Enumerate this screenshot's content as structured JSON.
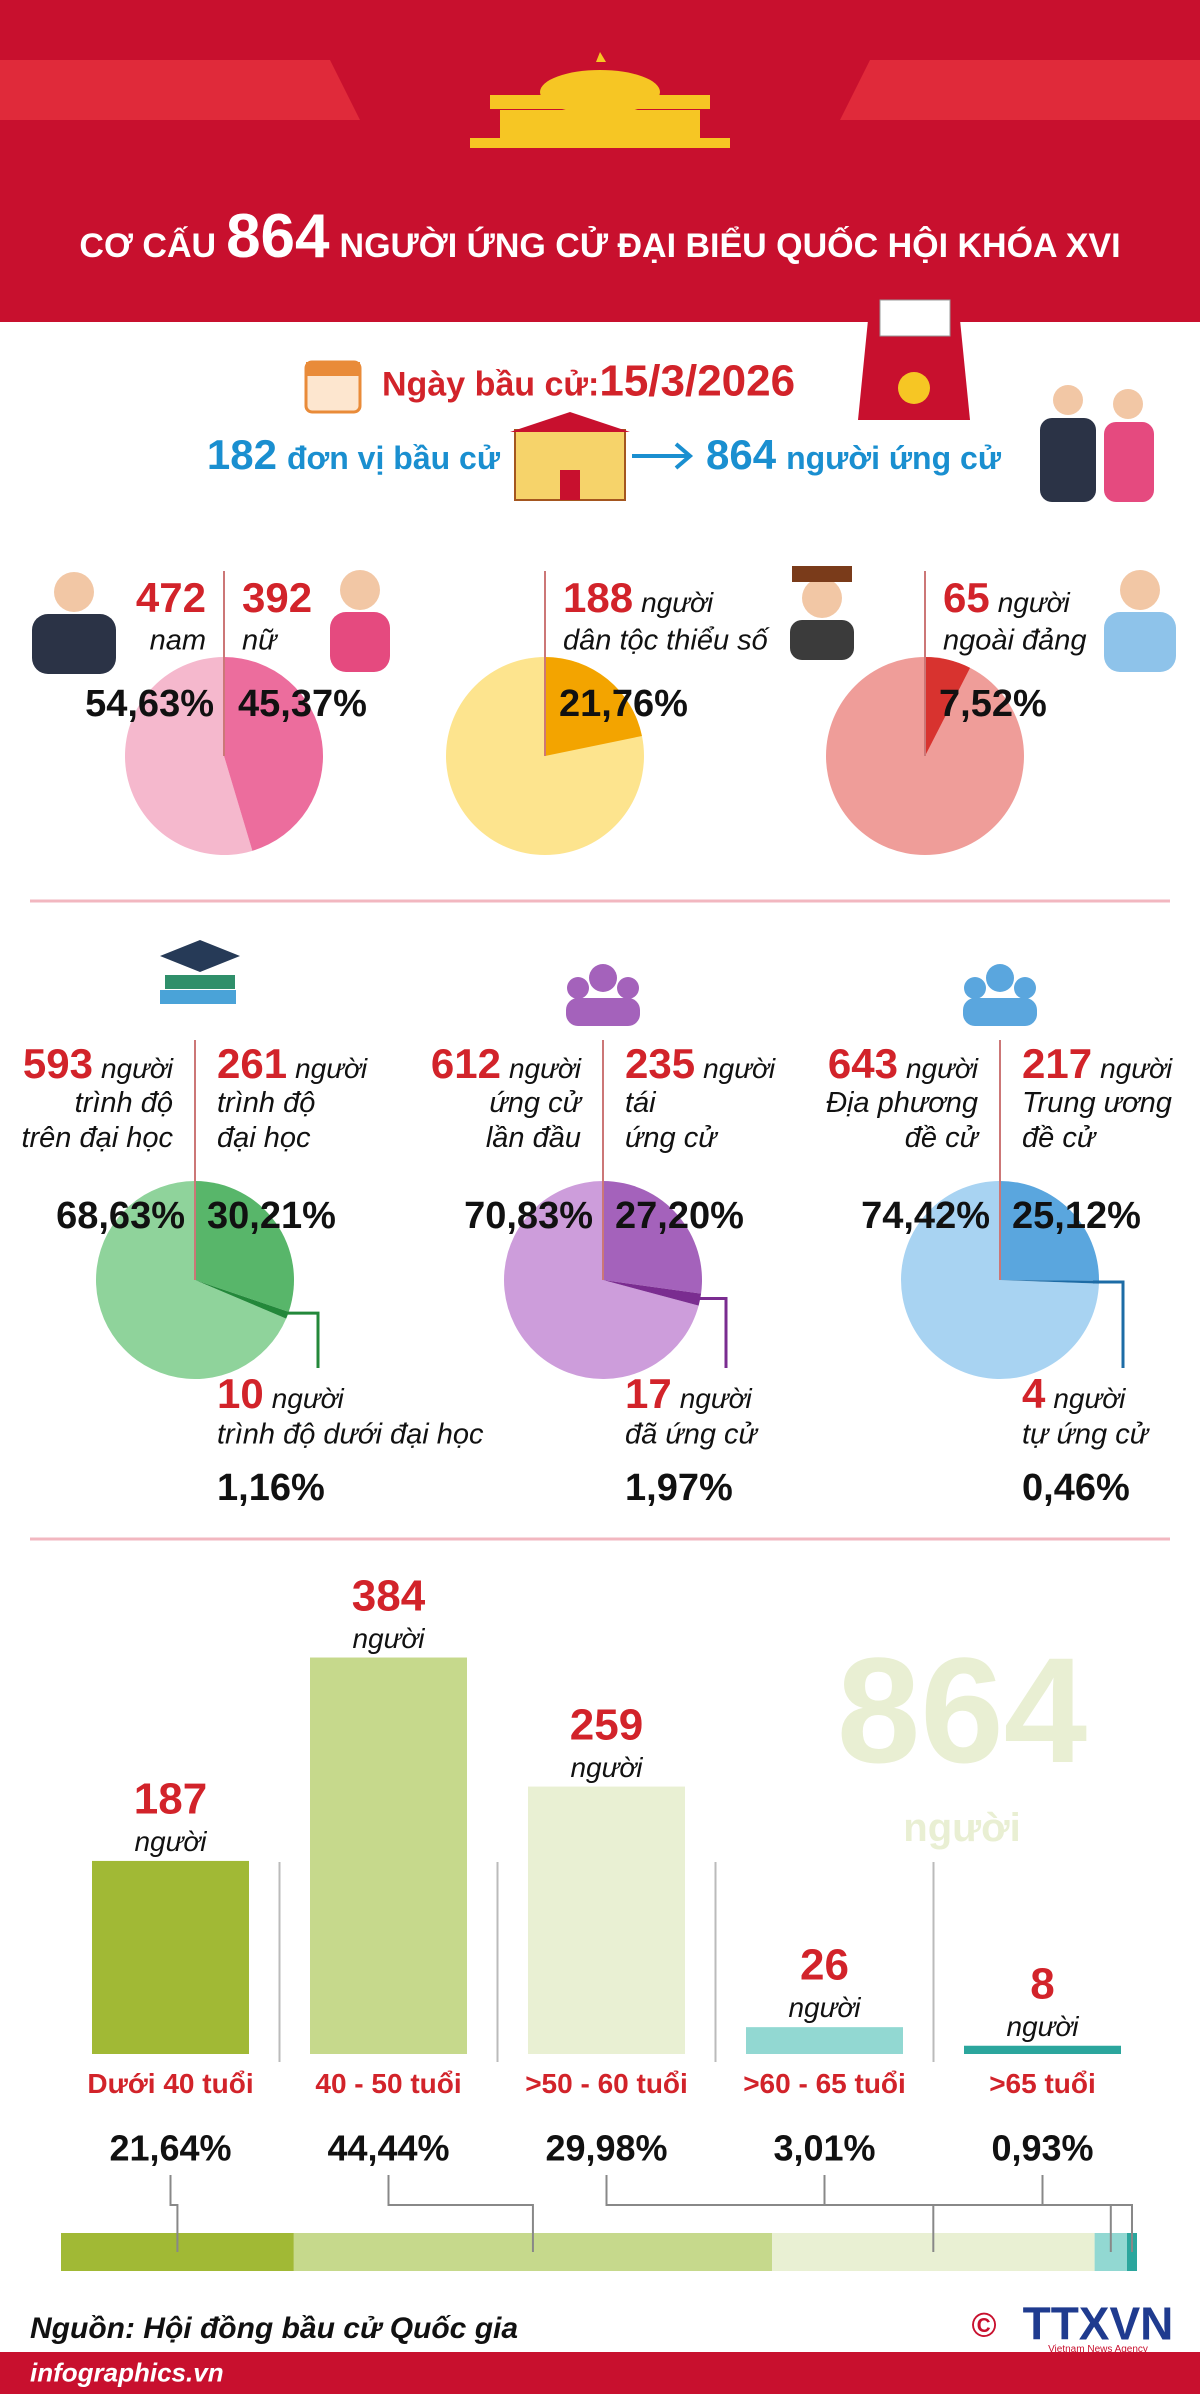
{
  "header": {
    "title_pre": "CƠ CẤU",
    "title_number": "864",
    "title_post": "NGƯỜI ỨNG CỬ ĐẠI BIỂU QUỐC HỘI KHÓA XVI"
  },
  "election": {
    "date_label": "Ngày bầu cử:",
    "date": "15/3/2026",
    "units_count": 182,
    "units_label": "đơn vị bầu cử",
    "candidates_count": 864,
    "candidates_label": "người ứng cử"
  },
  "chart_data": [
    {
      "type": "pie",
      "categories": [
        "nam",
        "nữ"
      ],
      "counts": [
        472,
        392
      ],
      "values": [
        54.63,
        45.37
      ],
      "value_labels": [
        "54,63%",
        "45,37%"
      ],
      "colors": [
        "#f5b8cd",
        "#ec6d9d"
      ]
    },
    {
      "type": "pie",
      "categories": [
        "dân tộc thiểu số"
      ],
      "counts": [
        188
      ],
      "unit": "người",
      "values": [
        21.76
      ],
      "value_labels": [
        "21,76%"
      ],
      "colors": [
        "#f3a400"
      ],
      "background_color": "#fde48e"
    },
    {
      "type": "pie",
      "categories": [
        "ngoài đảng"
      ],
      "counts": [
        65
      ],
      "unit": "người",
      "values": [
        7.52
      ],
      "value_labels": [
        "7,52%"
      ],
      "colors": [
        "#d8332f"
      ],
      "background_color": "#ef9d99"
    },
    {
      "type": "pie",
      "categories": [
        "trình độ\ntrên đại học",
        "trình độ\nđại học",
        "trình độ dưới đại học"
      ],
      "counts": [
        593,
        261,
        10
      ],
      "unit": "người",
      "values": [
        68.63,
        30.21,
        1.16
      ],
      "value_labels": [
        "68,63%",
        "30,21%",
        "1,16%"
      ],
      "colors": [
        "#8fd39b",
        "#58b66a",
        "#23883a"
      ]
    },
    {
      "type": "pie",
      "categories": [
        "ứng cử\nlần đầu",
        "tái\nứng cử",
        "đã ứng cử"
      ],
      "counts": [
        612,
        235,
        17
      ],
      "unit": "người",
      "values": [
        70.83,
        27.2,
        1.97
      ],
      "value_labels": [
        "70,83%",
        "27,20%",
        "1,97%"
      ],
      "colors": [
        "#cd9ddb",
        "#a462bb",
        "#7a2c90"
      ]
    },
    {
      "type": "pie",
      "categories": [
        "Địa phương\nđề cử",
        "Trung ương\nđề cử",
        "tự ứng cử"
      ],
      "counts": [
        643,
        217,
        4
      ],
      "unit": "người",
      "values": [
        74.42,
        25.12,
        0.46
      ],
      "value_labels": [
        "74,42%",
        "25,12%",
        "0,46%"
      ],
      "colors": [
        "#a8d3f2",
        "#5aa6de",
        "#1d6ca6"
      ]
    },
    {
      "type": "bar",
      "categories": [
        "Dưới 40 tuổi",
        "40 - 50 tuổi",
        ">50 - 60 tuổi",
        ">60 - 65 tuổi",
        ">65 tuổi"
      ],
      "values": [
        187,
        384,
        259,
        26,
        8
      ],
      "unit": "người",
      "percentages": [
        21.64,
        44.44,
        29.98,
        3.01,
        0.93
      ],
      "percentage_labels": [
        "21,64%",
        "44,44%",
        "29,98%",
        "3,01%",
        "0,93%"
      ],
      "colors": [
        "#a1b935",
        "#c6d98c",
        "#e9f0d3",
        "#92d8d2",
        "#2ba69d"
      ],
      "ylim": [
        0,
        400
      ],
      "total": 864,
      "total_unit": "người"
    }
  ],
  "footer": {
    "source": "Nguồn: Hội đồng bầu cử Quốc gia",
    "site": "infographics.vn",
    "copyright": "©",
    "logo": "TTXVN",
    "logo_sub": "Vietnam News Agency"
  }
}
